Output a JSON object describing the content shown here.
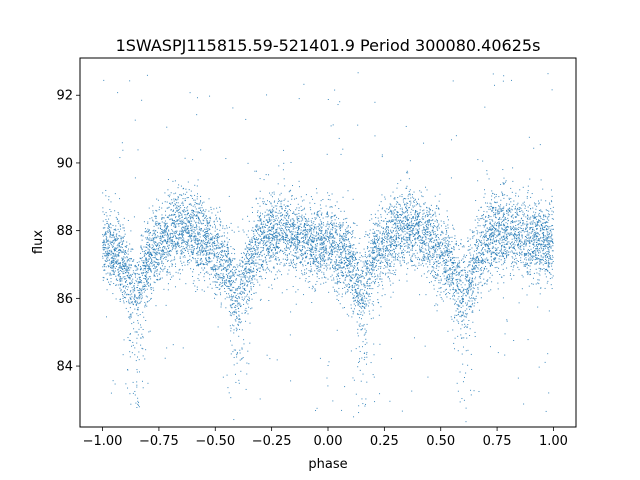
{
  "chart_data": {
    "type": "scatter",
    "title": "1SWASPJ115815.59-521401.9 Period 300080.40625s",
    "xlabel": "phase",
    "ylabel": "flux",
    "xlim": [
      -1.1,
      1.1
    ],
    "ylim": [
      82.2,
      93.1
    ],
    "x_ticks": [
      -1.0,
      -0.75,
      -0.5,
      -0.25,
      0.0,
      0.25,
      0.5,
      0.75,
      1.0
    ],
    "x_tick_labels": [
      "−1.00",
      "−0.75",
      "−0.50",
      "−0.25",
      "0.00",
      "0.25",
      "0.50",
      "0.75",
      "1.00"
    ],
    "y_ticks": [
      84,
      86,
      88,
      90,
      92
    ],
    "y_tick_labels": [
      "84",
      "86",
      "88",
      "90",
      "92"
    ],
    "grid": false,
    "legend": "none",
    "marker_color": "#1f77b4",
    "series": [
      {
        "x": [
          -1.0,
          -0.95,
          -0.9,
          -0.87,
          -0.85,
          -0.83,
          -0.8,
          -0.75,
          -0.7,
          -0.65,
          -0.6,
          -0.55,
          -0.5,
          -0.45,
          -0.42,
          -0.4,
          -0.38,
          -0.35,
          -0.32,
          -0.3,
          -0.25,
          -0.2,
          -0.15,
          -0.1,
          -0.05,
          0.0,
          0.05,
          0.1,
          0.13,
          0.15,
          0.17,
          0.2,
          0.25,
          0.3,
          0.35,
          0.4,
          0.45,
          0.5,
          0.55,
          0.58,
          0.6,
          0.62,
          0.65,
          0.68,
          0.7,
          0.75,
          0.8,
          0.85,
          0.9,
          0.95,
          1.0
        ],
        "y": [
          87.6,
          87.4,
          87.0,
          86.6,
          86.2,
          86.6,
          87.2,
          87.6,
          87.9,
          88.1,
          88.0,
          87.7,
          87.4,
          87.0,
          86.5,
          86.3,
          86.5,
          87.0,
          87.5,
          87.7,
          87.9,
          88.0,
          87.9,
          87.7,
          87.6,
          87.6,
          87.4,
          87.0,
          86.6,
          86.2,
          86.6,
          87.2,
          87.6,
          87.9,
          88.1,
          88.0,
          87.7,
          87.4,
          87.0,
          86.5,
          86.3,
          86.5,
          87.0,
          87.5,
          87.7,
          87.9,
          88.0,
          87.9,
          87.7,
          87.6,
          87.6
        ]
      }
    ]
  }
}
